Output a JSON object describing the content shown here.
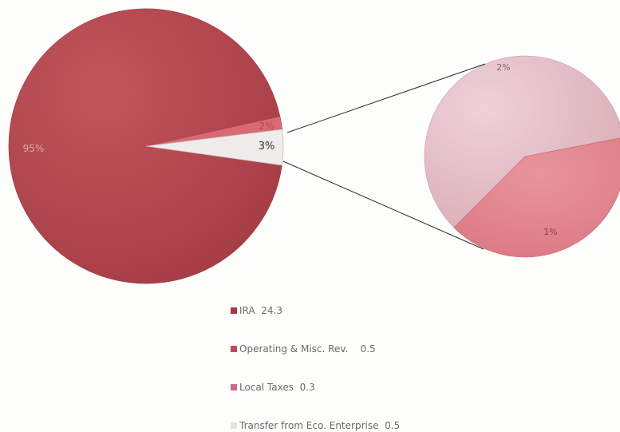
{
  "chart_data": {
    "type": "pie",
    "subtype": "pie-of-pie",
    "categories": [
      "IRA",
      "Operating & Misc. Rev.",
      "Local Taxes",
      "Transfer from Eco. Enterprise"
    ],
    "values": [
      24.3,
      0.5,
      0.3,
      0.5
    ],
    "main_pie": {
      "slices": [
        {
          "category": "IRA",
          "label": "95%",
          "color": "#b5464d"
        },
        {
          "category": "Operating & Misc. Rev.",
          "label": "2%",
          "color": "#d86a74"
        },
        {
          "category": "Other (expanded)",
          "label": "3%",
          "color": "#f0ecec"
        }
      ]
    },
    "secondary_pie": {
      "slices": [
        {
          "category": "Local Taxes",
          "label": "1%",
          "color": "#e4888f"
        },
        {
          "category": "Transfer from Eco. Enterprise",
          "label": "2%",
          "color": "#e3bcc5"
        }
      ]
    },
    "legend": {
      "position": "bottom-center",
      "items": [
        {
          "label": "IRA",
          "value": "24.3",
          "color": "#9e3a40"
        },
        {
          "label": "Operating & Misc. Rev.",
          "value": "0.5",
          "color": "#b55058"
        },
        {
          "label": "Local Taxes",
          "value": "0.3",
          "color": "#c4708d"
        },
        {
          "label": "Transfer from Eco. Enterprise",
          "value": "0.5",
          "color": "#e8e2e4"
        }
      ]
    },
    "grid": false
  }
}
